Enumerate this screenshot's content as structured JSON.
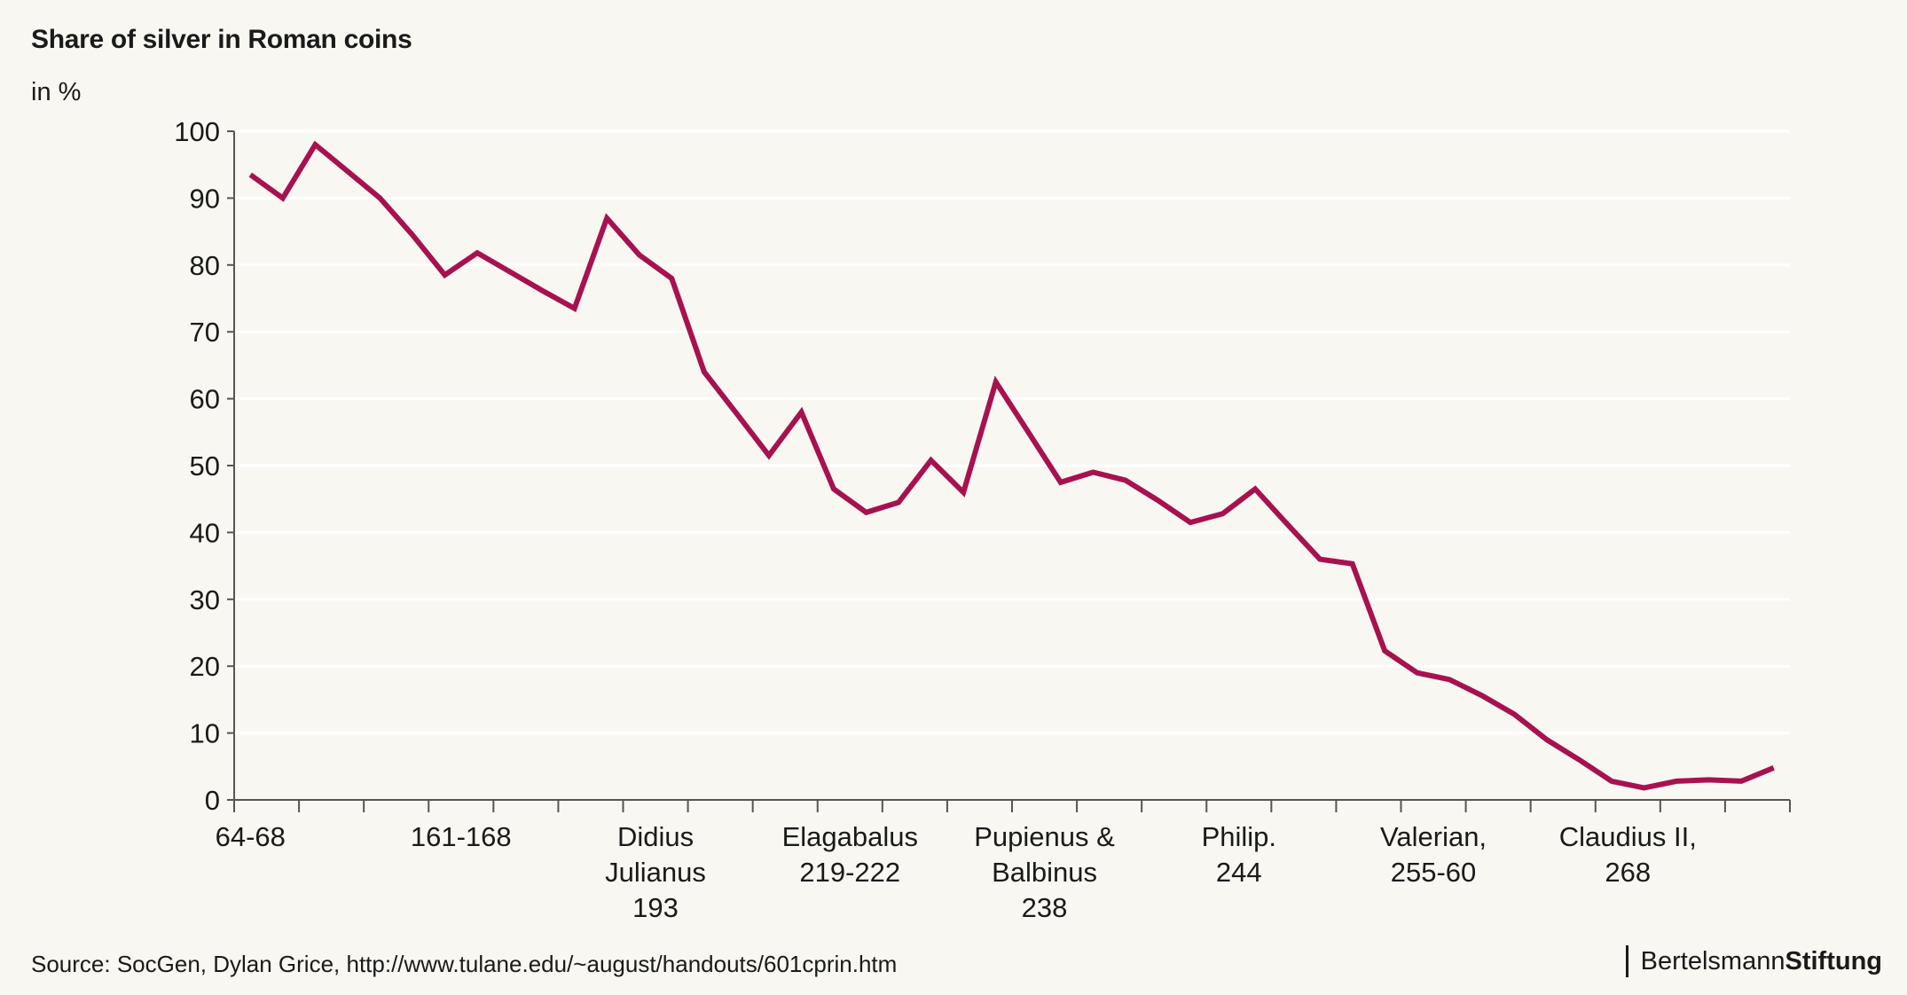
{
  "chart_data": {
    "type": "line",
    "title": "Share of silver in Roman coins",
    "unit": "in %",
    "ylim": [
      0,
      100
    ],
    "yticks": [
      0,
      10,
      20,
      30,
      40,
      50,
      60,
      70,
      80,
      90,
      100
    ],
    "grid": true,
    "line_color": "#a8114f",
    "x_category_labels": [
      {
        "index": 0,
        "lines": [
          "64-68"
        ]
      },
      {
        "index": 6,
        "lines": [
          "161-168"
        ]
      },
      {
        "index": 12,
        "lines": [
          "Didius",
          "Julianus",
          "193"
        ]
      },
      {
        "index": 18,
        "lines": [
          "Elagabalus",
          "219-222"
        ]
      },
      {
        "index": 24,
        "lines": [
          "Pupienus &",
          "Balbinus",
          "238"
        ]
      },
      {
        "index": 30,
        "lines": [
          "Philip.",
          "244"
        ]
      },
      {
        "index": 36,
        "lines": [
          "Valerian,",
          "255-60"
        ]
      },
      {
        "index": 42,
        "lines": [
          "Claudius II,",
          "268"
        ]
      }
    ],
    "series": [
      {
        "values": [
          93.5,
          90,
          98,
          94,
          90,
          84.5,
          78.5,
          81.8,
          79,
          76.2,
          73.5,
          87,
          81.5,
          78,
          64,
          57.8,
          51.5,
          58,
          46.5,
          43,
          44.5,
          50.8,
          46,
          62.5,
          55,
          47.5,
          49,
          47.8,
          44.8,
          41.5,
          42.8,
          46.5,
          41.2,
          36,
          35.3,
          22.3,
          19,
          18,
          15.6,
          12.8,
          9,
          6,
          2.8,
          1.8,
          2.8,
          3,
          2.8,
          4.8
        ]
      }
    ]
  },
  "source": "Source: SocGen, Dylan Grice, http://www.tulane.edu/~august/handouts/601cprin.htm",
  "brand": {
    "part1": "Bertelsmann",
    "part2": "Stiftung"
  }
}
